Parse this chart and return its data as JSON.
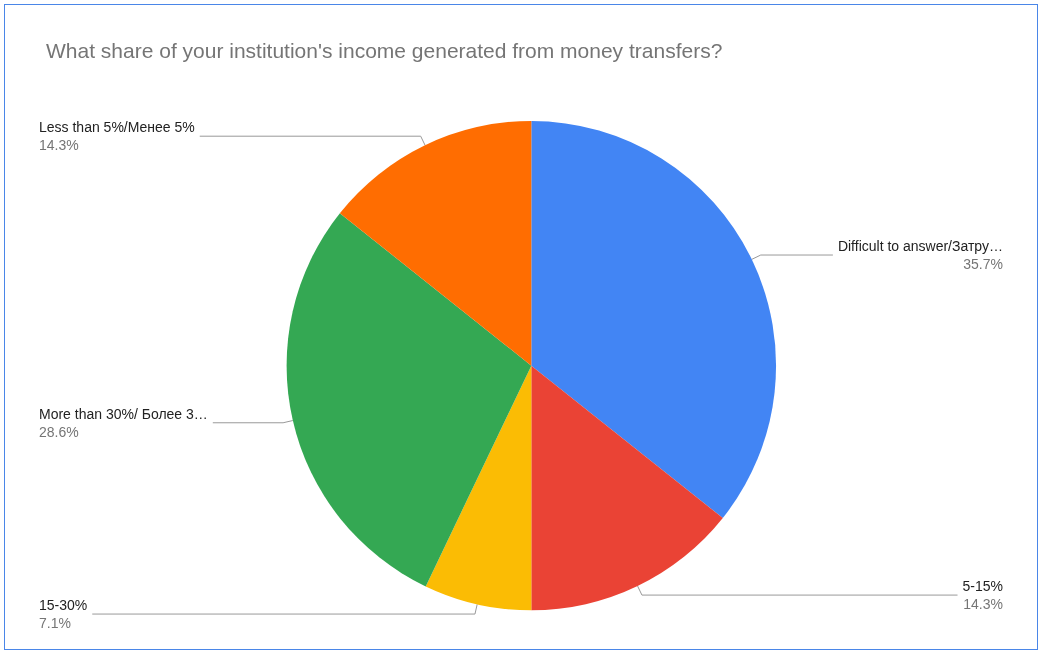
{
  "chart_data": {
    "type": "pie",
    "title": "What share of your institution's income generated from money transfers?",
    "categories": [
      "Difficult to answer/Затру…",
      "5-15%",
      "15-30%",
      "More than 30%/ Более 3…",
      "Less than 5%/Менее 5%"
    ],
    "values": [
      35.7,
      14.3,
      7.1,
      28.6,
      14.3
    ],
    "value_labels": [
      "35.7%",
      "14.3%",
      "7.1%",
      "28.6%",
      "14.3%"
    ],
    "colors": [
      "#4285f4",
      "#ea4335",
      "#fbbc04",
      "#34a853",
      "#ff6d01"
    ],
    "legend": false
  }
}
